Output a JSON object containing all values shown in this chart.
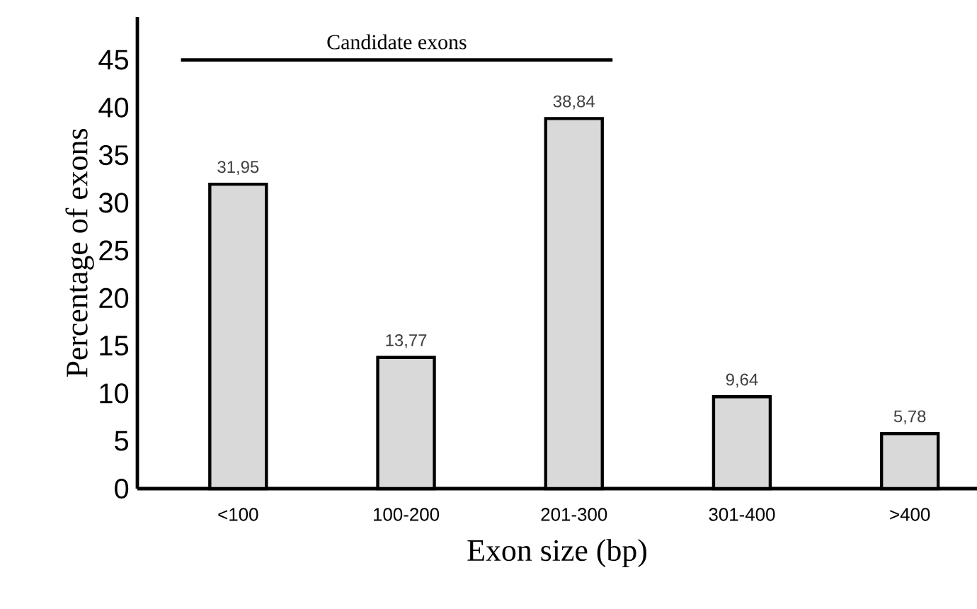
{
  "chart_data": {
    "type": "bar",
    "categories": [
      "<100",
      "100-200",
      "201-300",
      "301-400",
      ">400"
    ],
    "values": [
      31.95,
      13.77,
      38.84,
      9.64,
      5.78
    ],
    "value_labels": [
      "31,95",
      "13,77",
      "38,84",
      "9,64",
      "5,78"
    ],
    "color": "#d9d9d9",
    "xlabel": "Exon size (bp)",
    "ylabel": "Percentage of exons",
    "ylim": [
      0,
      49.5
    ],
    "yticks": [
      0,
      5,
      10,
      15,
      20,
      25,
      30,
      35,
      40,
      45
    ],
    "annotations": [
      "Candidate exons"
    ],
    "grid": false
  }
}
